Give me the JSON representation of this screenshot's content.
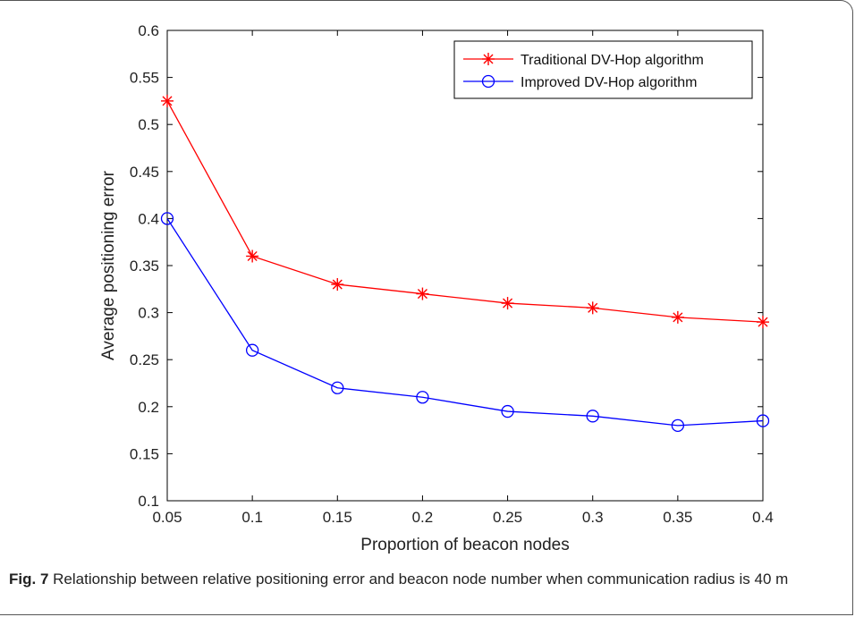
{
  "caption": {
    "label": "Fig. 7",
    "text": "Relationship between relative positioning error and beacon node number when communication radius is 40 m"
  },
  "chart_data": {
    "type": "line",
    "xlabel": "Proportion of beacon nodes",
    "ylabel": "Average positioning error",
    "xlim": [
      0.05,
      0.4
    ],
    "ylim": [
      0.1,
      0.6
    ],
    "x": [
      0.05,
      0.1,
      0.15,
      0.2,
      0.25,
      0.3,
      0.35,
      0.4
    ],
    "xtick_labels": [
      "0.05",
      "0.1",
      "0.15",
      "0.2",
      "0.25",
      "0.3",
      "0.35",
      "0.4"
    ],
    "yticks": [
      0.1,
      0.15,
      0.2,
      0.25,
      0.3,
      0.35,
      0.4,
      0.45,
      0.5,
      0.55,
      0.6
    ],
    "ytick_labels": [
      "0.1",
      "0.15",
      "0.2",
      "0.25",
      "0.3",
      "0.35",
      "0.4",
      "0.45",
      "0.5",
      "0.55",
      "0.6"
    ],
    "grid": false,
    "legend_position": "top-right",
    "series": [
      {
        "name": "Traditional DV-Hop algorithm",
        "color": "#ff0000",
        "marker": "asterisk",
        "values": [
          0.525,
          0.36,
          0.33,
          0.32,
          0.31,
          0.305,
          0.295,
          0.29
        ]
      },
      {
        "name": "Improved DV-Hop algorithm",
        "color": "#0000ff",
        "marker": "circle",
        "values": [
          0.4,
          0.26,
          0.22,
          0.21,
          0.195,
          0.19,
          0.18,
          0.185
        ]
      }
    ]
  }
}
